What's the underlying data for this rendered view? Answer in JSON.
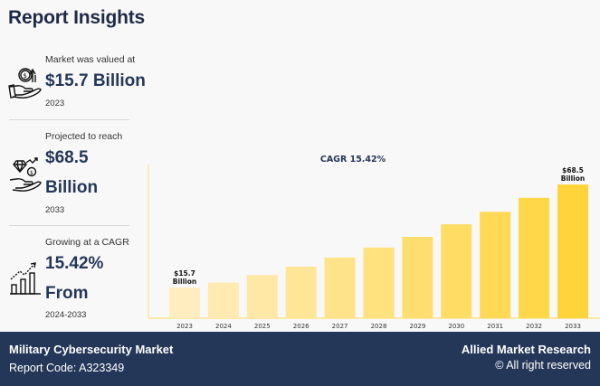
{
  "header": {
    "title": "Report Insights"
  },
  "insights": [
    {
      "icon": "money-hand-growth-icon",
      "label": "Market was valued at",
      "value": "$15.7 Billion",
      "sub": "2023"
    },
    {
      "icon": "diamond-hand-icon",
      "label": "Projected to reach",
      "value_line1": "$68.5",
      "value_line2": "Billion",
      "sub": "2033"
    },
    {
      "icon": "bar-growth-icon",
      "label": "Growing at a CAGR",
      "value_line1": "15.42%",
      "value_line2": "From",
      "sub": "2024-2033"
    }
  ],
  "footer": {
    "market_name": "Military Cybersecurity Market",
    "report_code": "Report Code: A323349",
    "brand": "Allied Market Research",
    "rights": "© All right reserved"
  },
  "chart_data": {
    "type": "bar",
    "title": "CAGR 15.42%",
    "xlabel": "",
    "ylabel": "",
    "categories": [
      "2023",
      "2024",
      "2025",
      "2026",
      "2027",
      "2028",
      "2029",
      "2030",
      "2031",
      "2032",
      "2033"
    ],
    "values": [
      15.7,
      18.3,
      22.1,
      26.4,
      31.1,
      36.2,
      41.7,
      48.1,
      54.5,
      61.7,
      68.5
    ],
    "units": "USD Billion",
    "ylim": [
      0,
      75
    ],
    "grid": false,
    "annotations": [
      {
        "category": "2023",
        "line1": "$15.7",
        "line2": "Billion"
      },
      {
        "category": "2033",
        "line1": "$68.5",
        "line2": "Billion"
      }
    ],
    "colors": {
      "start": "#ffedbf",
      "end": "#ffd43b",
      "axis": "#fbe7a6"
    }
  }
}
